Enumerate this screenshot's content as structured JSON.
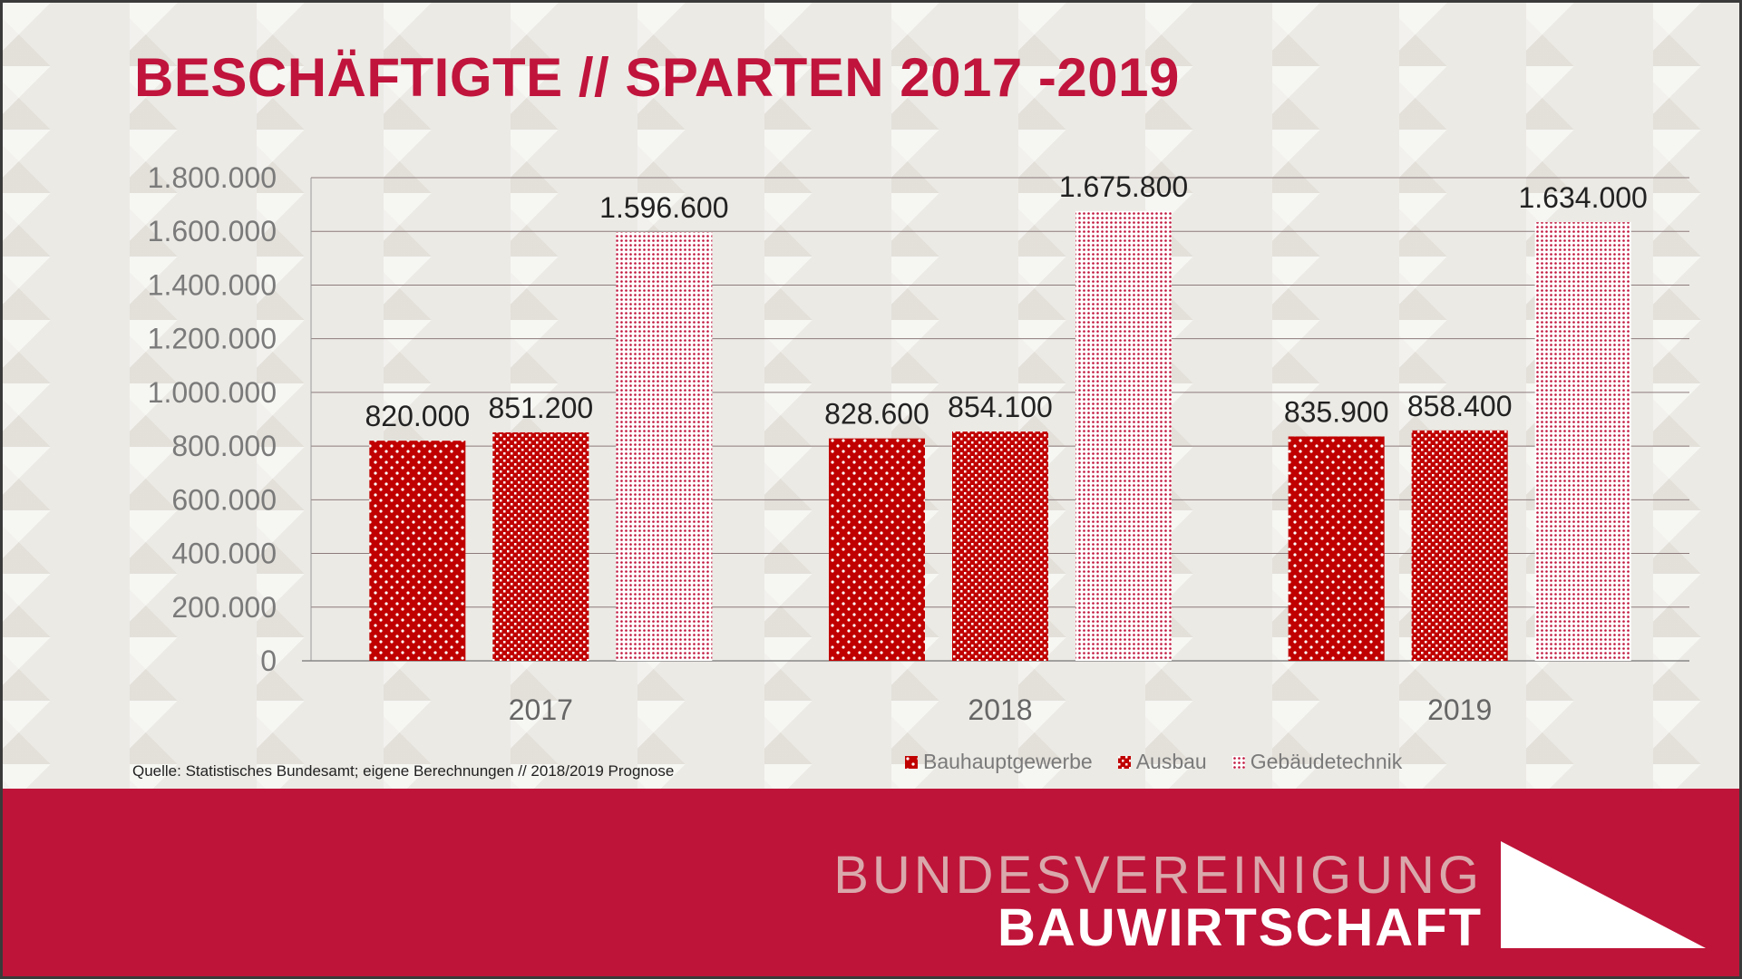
{
  "title": "BESCHÄFTIGTE // SPARTEN 2017 -2019",
  "source": "Quelle: Statistisches Bundesamt; eigene Berechnungen // 2018/2019 Prognose",
  "brand": {
    "line1": "BUNDESVEREINIGUNG",
    "line2": "BAUWIRTSCHAFT"
  },
  "colors": {
    "accent": "#c0143c",
    "footer": "#be1439",
    "bar_dark": "#c00000"
  },
  "chart_data": {
    "type": "bar",
    "categories": [
      "2017",
      "2018",
      "2019"
    ],
    "series": [
      {
        "name": "Bauhauptgewerbe",
        "values": [
          820000,
          828600,
          835900
        ],
        "labels": [
          "820.000",
          "828.600",
          "835.900"
        ],
        "pattern": "dots-sparse"
      },
      {
        "name": "Ausbau",
        "values": [
          851200,
          854100,
          858400
        ],
        "labels": [
          "851.200",
          "854.100",
          "858.400"
        ],
        "pattern": "checker"
      },
      {
        "name": "Gebäudetechnik",
        "values": [
          1596600,
          1675800,
          1634000
        ],
        "labels": [
          "1.596.600",
          "1.675.800",
          "1.634.000"
        ],
        "pattern": "dots-dense"
      }
    ],
    "ylim": [
      0,
      1800000
    ],
    "yticks": [
      0,
      200000,
      400000,
      600000,
      800000,
      1000000,
      1200000,
      1400000,
      1600000,
      1800000
    ],
    "ytick_labels": [
      "0",
      "200.000",
      "400.000",
      "600.000",
      "800.000",
      "1.000.000",
      "1.200.000",
      "1.400.000",
      "1.600.000",
      "1.800.000"
    ],
    "grid": true,
    "legend": "bottom-right"
  }
}
